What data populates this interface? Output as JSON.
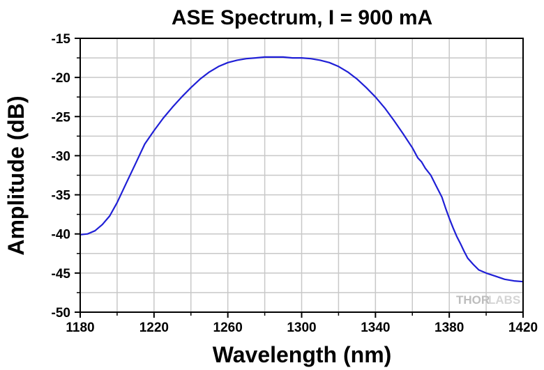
{
  "chart_data": {
    "type": "line",
    "title": "ASE Spectrum, I = 900 mA",
    "xlabel": "Wavelength (nm)",
    "ylabel": "Amplitude (dB)",
    "xlim": [
      1180,
      1420
    ],
    "ylim": [
      -50,
      -15
    ],
    "xticks": [
      1180,
      1220,
      1260,
      1300,
      1340,
      1380,
      1420
    ],
    "yticks": [
      -15,
      -20,
      -25,
      -30,
      -35,
      -40,
      -45,
      -50
    ],
    "xtick_labels": [
      "1180",
      "1220",
      "1260",
      "1300",
      "1340",
      "1380",
      "1420"
    ],
    "ytick_labels": [
      "-15",
      "-20",
      "-25",
      "-30",
      "-35",
      "-40",
      "-45",
      "-50"
    ],
    "grid": true,
    "line_color": "#1f1fd6",
    "series": [
      {
        "x": [
          1180,
          1184,
          1188,
          1192,
          1196,
          1200,
          1205,
          1210,
          1215,
          1220,
          1225,
          1230,
          1235,
          1240,
          1245,
          1250,
          1255,
          1260,
          1265,
          1270,
          1275,
          1280,
          1285,
          1290,
          1295,
          1300,
          1305,
          1310,
          1315,
          1320,
          1325,
          1330,
          1335,
          1340,
          1345,
          1350,
          1355,
          1360,
          1363,
          1365,
          1367,
          1370,
          1373,
          1376,
          1378,
          1380,
          1382,
          1384,
          1386,
          1388,
          1390,
          1393,
          1396,
          1400,
          1405,
          1410,
          1415,
          1420
        ],
        "y": [
          -40.1,
          -40.0,
          -39.6,
          -38.8,
          -37.7,
          -36.0,
          -33.5,
          -31.0,
          -28.5,
          -26.8,
          -25.2,
          -23.8,
          -22.5,
          -21.3,
          -20.2,
          -19.3,
          -18.6,
          -18.1,
          -17.8,
          -17.6,
          -17.5,
          -17.4,
          -17.4,
          -17.4,
          -17.5,
          -17.5,
          -17.6,
          -17.8,
          -18.1,
          -18.6,
          -19.3,
          -20.2,
          -21.3,
          -22.5,
          -23.9,
          -25.5,
          -27.2,
          -29.0,
          -30.3,
          -30.8,
          -31.6,
          -32.5,
          -33.9,
          -35.3,
          -36.7,
          -38.0,
          -39.2,
          -40.3,
          -41.2,
          -42.2,
          -43.1,
          -43.9,
          -44.6,
          -45.0,
          -45.4,
          -45.8,
          -46.0,
          -46.1
        ]
      }
    ]
  },
  "watermark": {
    "part1": "THOR",
    "part2": "LABS"
  }
}
